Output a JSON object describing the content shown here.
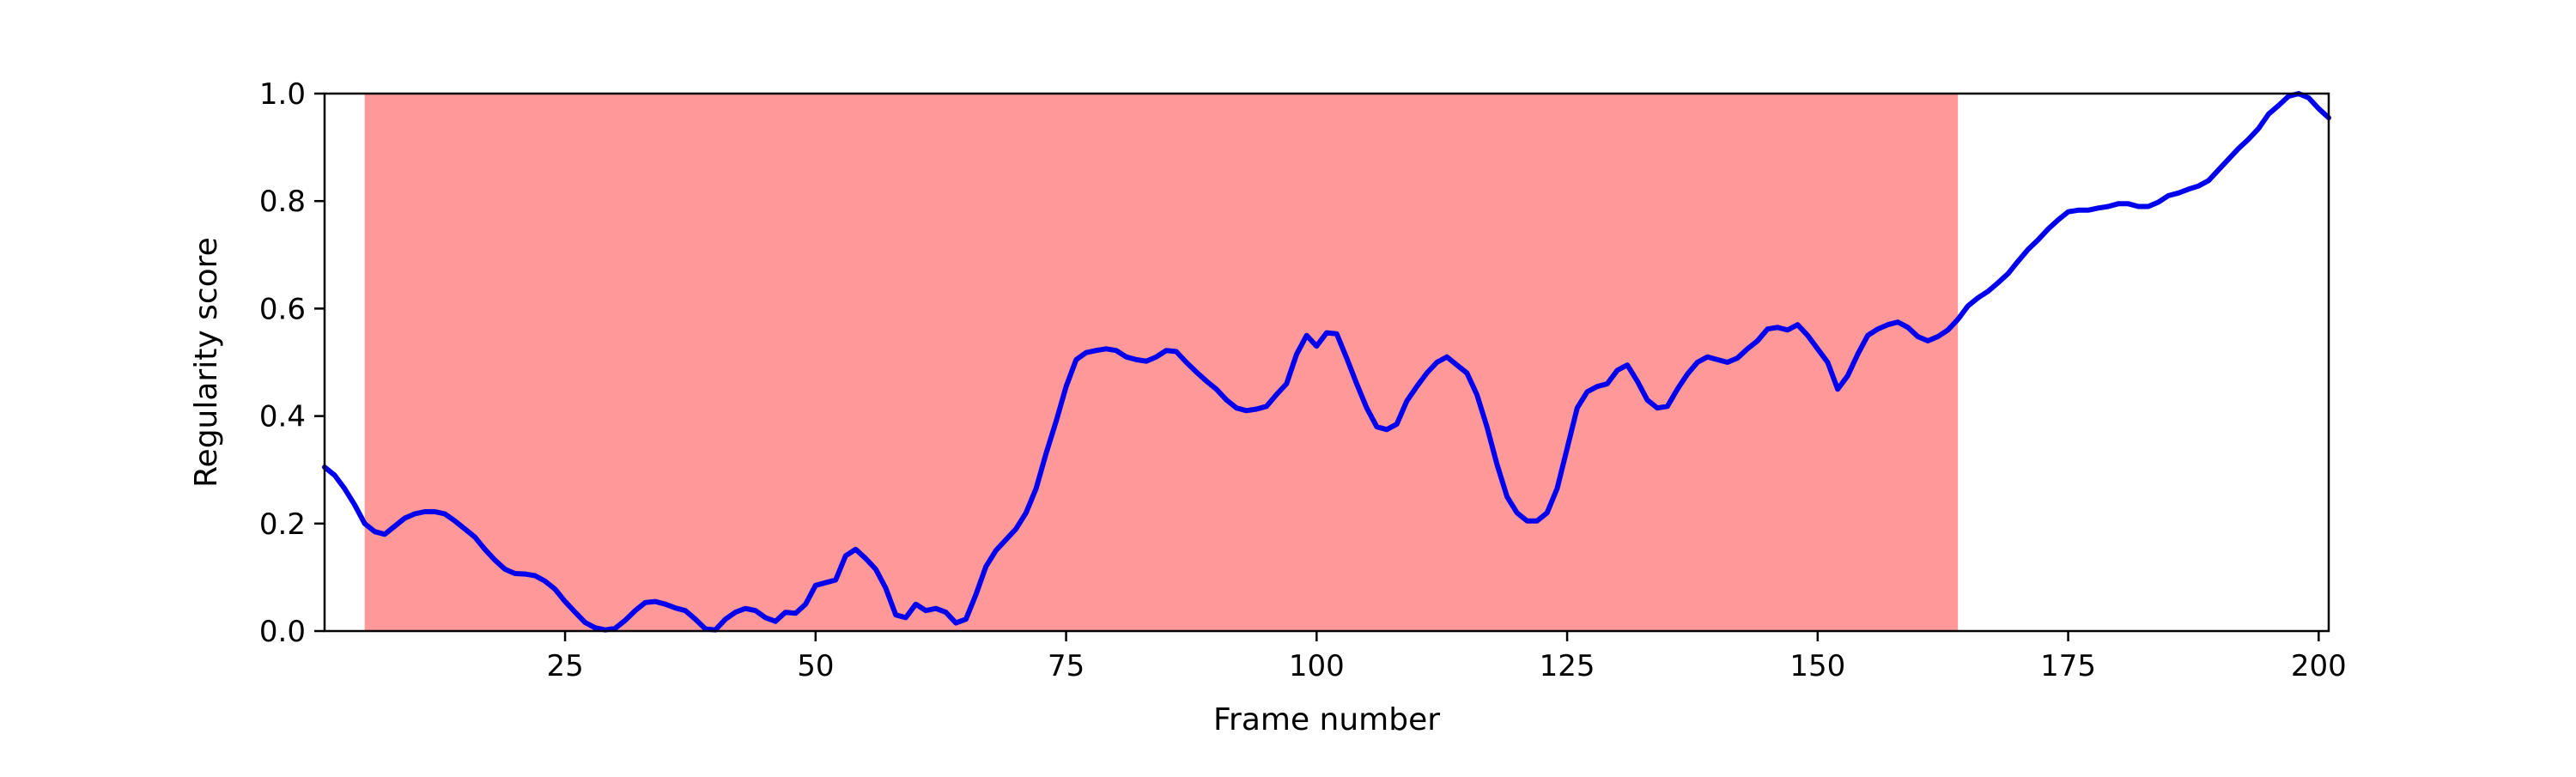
{
  "chart_data": {
    "type": "line",
    "xlabel": "Frame number",
    "ylabel": "Regularity score",
    "xlim": [
      1,
      201
    ],
    "ylim": [
      0.0,
      1.0
    ],
    "xticks": [
      25,
      50,
      75,
      100,
      125,
      150,
      175,
      200
    ],
    "yticks": [
      0.0,
      0.2,
      0.4,
      0.6,
      0.8,
      1.0
    ],
    "xtick_labels": [
      "25",
      "50",
      "75",
      "100",
      "125",
      "150",
      "175",
      "200"
    ],
    "ytick_labels": [
      "0.0",
      "0.2",
      "0.4",
      "0.6",
      "0.8",
      "1.0"
    ],
    "grid": false,
    "highlight": {
      "x_start": 5,
      "x_end": 164,
      "color": "#ff9999"
    },
    "series": [
      {
        "color": "#0000ee",
        "points": [
          [
            1,
            0.305
          ],
          [
            2,
            0.29
          ],
          [
            3,
            0.265
          ],
          [
            4,
            0.235
          ],
          [
            5,
            0.2
          ],
          [
            6,
            0.185
          ],
          [
            7,
            0.18
          ],
          [
            8,
            0.195
          ],
          [
            9,
            0.21
          ],
          [
            10,
            0.218
          ],
          [
            11,
            0.222
          ],
          [
            12,
            0.222
          ],
          [
            13,
            0.218
          ],
          [
            14,
            0.205
          ],
          [
            15,
            0.19
          ],
          [
            16,
            0.175
          ],
          [
            17,
            0.152
          ],
          [
            18,
            0.132
          ],
          [
            19,
            0.115
          ],
          [
            20,
            0.107
          ],
          [
            21,
            0.106
          ],
          [
            22,
            0.103
          ],
          [
            23,
            0.093
          ],
          [
            24,
            0.078
          ],
          [
            25,
            0.055
          ],
          [
            26,
            0.035
          ],
          [
            27,
            0.016
          ],
          [
            28,
            0.006
          ],
          [
            29,
            0.002
          ],
          [
            30,
            0.005
          ],
          [
            31,
            0.02
          ],
          [
            32,
            0.038
          ],
          [
            33,
            0.053
          ],
          [
            34,
            0.055
          ],
          [
            35,
            0.05
          ],
          [
            36,
            0.043
          ],
          [
            37,
            0.038
          ],
          [
            38,
            0.022
          ],
          [
            39,
            0.004
          ],
          [
            40,
            0.002
          ],
          [
            41,
            0.022
          ],
          [
            42,
            0.035
          ],
          [
            43,
            0.042
          ],
          [
            44,
            0.038
          ],
          [
            45,
            0.025
          ],
          [
            46,
            0.018
          ],
          [
            47,
            0.035
          ],
          [
            48,
            0.033
          ],
          [
            49,
            0.05
          ],
          [
            50,
            0.085
          ],
          [
            51,
            0.09
          ],
          [
            52,
            0.095
          ],
          [
            53,
            0.14
          ],
          [
            54,
            0.152
          ],
          [
            55,
            0.135
          ],
          [
            56,
            0.115
          ],
          [
            57,
            0.08
          ],
          [
            58,
            0.03
          ],
          [
            59,
            0.025
          ],
          [
            60,
            0.05
          ],
          [
            61,
            0.038
          ],
          [
            62,
            0.042
          ],
          [
            63,
            0.035
          ],
          [
            64,
            0.015
          ],
          [
            65,
            0.022
          ],
          [
            66,
            0.068
          ],
          [
            67,
            0.12
          ],
          [
            68,
            0.15
          ],
          [
            69,
            0.17
          ],
          [
            70,
            0.19
          ],
          [
            71,
            0.22
          ],
          [
            72,
            0.265
          ],
          [
            73,
            0.33
          ],
          [
            74,
            0.39
          ],
          [
            75,
            0.455
          ],
          [
            76,
            0.505
          ],
          [
            77,
            0.518
          ],
          [
            78,
            0.522
          ],
          [
            79,
            0.525
          ],
          [
            80,
            0.522
          ],
          [
            81,
            0.51
          ],
          [
            82,
            0.505
          ],
          [
            83,
            0.502
          ],
          [
            84,
            0.51
          ],
          [
            85,
            0.522
          ],
          [
            86,
            0.52
          ],
          [
            87,
            0.5
          ],
          [
            88,
            0.482
          ],
          [
            89,
            0.465
          ],
          [
            90,
            0.45
          ],
          [
            91,
            0.43
          ],
          [
            92,
            0.415
          ],
          [
            93,
            0.41
          ],
          [
            94,
            0.413
          ],
          [
            95,
            0.418
          ],
          [
            96,
            0.44
          ],
          [
            97,
            0.46
          ],
          [
            98,
            0.515
          ],
          [
            99,
            0.55
          ],
          [
            100,
            0.53
          ],
          [
            101,
            0.555
          ],
          [
            102,
            0.553
          ],
          [
            103,
            0.508
          ],
          [
            104,
            0.46
          ],
          [
            105,
            0.415
          ],
          [
            106,
            0.38
          ],
          [
            107,
            0.375
          ],
          [
            108,
            0.385
          ],
          [
            109,
            0.428
          ],
          [
            110,
            0.455
          ],
          [
            111,
            0.48
          ],
          [
            112,
            0.5
          ],
          [
            113,
            0.51
          ],
          [
            114,
            0.495
          ],
          [
            115,
            0.48
          ],
          [
            116,
            0.44
          ],
          [
            117,
            0.38
          ],
          [
            118,
            0.31
          ],
          [
            119,
            0.25
          ],
          [
            120,
            0.22
          ],
          [
            121,
            0.205
          ],
          [
            122,
            0.205
          ],
          [
            123,
            0.22
          ],
          [
            124,
            0.265
          ],
          [
            125,
            0.34
          ],
          [
            126,
            0.415
          ],
          [
            127,
            0.445
          ],
          [
            128,
            0.455
          ],
          [
            129,
            0.46
          ],
          [
            130,
            0.485
          ],
          [
            131,
            0.495
          ],
          [
            132,
            0.465
          ],
          [
            133,
            0.43
          ],
          [
            134,
            0.415
          ],
          [
            135,
            0.418
          ],
          [
            136,
            0.45
          ],
          [
            137,
            0.478
          ],
          [
            138,
            0.5
          ],
          [
            139,
            0.51
          ],
          [
            140,
            0.505
          ],
          [
            141,
            0.5
          ],
          [
            142,
            0.508
          ],
          [
            143,
            0.525
          ],
          [
            144,
            0.54
          ],
          [
            145,
            0.562
          ],
          [
            146,
            0.565
          ],
          [
            147,
            0.56
          ],
          [
            148,
            0.57
          ],
          [
            149,
            0.55
          ],
          [
            150,
            0.525
          ],
          [
            151,
            0.5
          ],
          [
            152,
            0.45
          ],
          [
            153,
            0.475
          ],
          [
            154,
            0.515
          ],
          [
            155,
            0.55
          ],
          [
            156,
            0.562
          ],
          [
            157,
            0.57
          ],
          [
            158,
            0.575
          ],
          [
            159,
            0.565
          ],
          [
            160,
            0.548
          ],
          [
            161,
            0.54
          ],
          [
            162,
            0.548
          ],
          [
            163,
            0.56
          ],
          [
            164,
            0.58
          ],
          [
            165,
            0.605
          ],
          [
            166,
            0.62
          ],
          [
            167,
            0.632
          ],
          [
            168,
            0.648
          ],
          [
            169,
            0.665
          ],
          [
            170,
            0.688
          ],
          [
            171,
            0.71
          ],
          [
            172,
            0.728
          ],
          [
            173,
            0.748
          ],
          [
            174,
            0.765
          ],
          [
            175,
            0.78
          ],
          [
            176,
            0.783
          ],
          [
            177,
            0.783
          ],
          [
            178,
            0.787
          ],
          [
            179,
            0.79
          ],
          [
            180,
            0.795
          ],
          [
            181,
            0.795
          ],
          [
            182,
            0.79
          ],
          [
            183,
            0.79
          ],
          [
            184,
            0.798
          ],
          [
            185,
            0.81
          ],
          [
            186,
            0.815
          ],
          [
            187,
            0.822
          ],
          [
            188,
            0.828
          ],
          [
            189,
            0.838
          ],
          [
            190,
            0.858
          ],
          [
            191,
            0.878
          ],
          [
            192,
            0.898
          ],
          [
            193,
            0.915
          ],
          [
            194,
            0.935
          ],
          [
            195,
            0.962
          ],
          [
            196,
            0.978
          ],
          [
            197,
            0.995
          ],
          [
            198,
            1.0
          ],
          [
            199,
            0.992
          ],
          [
            200,
            0.972
          ],
          [
            201,
            0.955
          ]
        ]
      }
    ]
  }
}
